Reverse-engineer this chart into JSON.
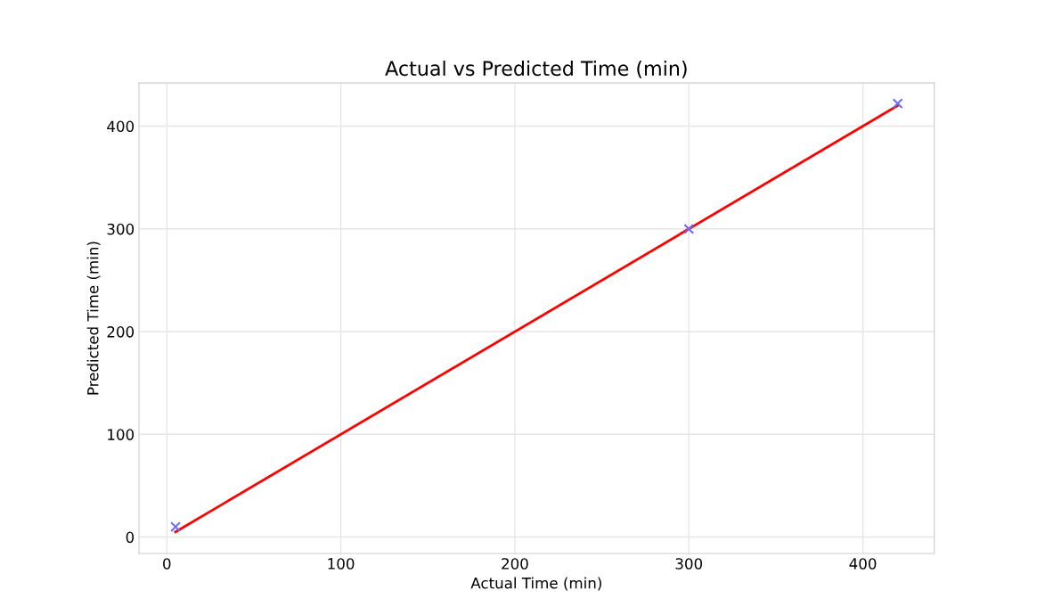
{
  "chart_data": {
    "type": "scatter",
    "title": "Actual vs Predicted Time (min)",
    "xlabel": "Actual Time (min)",
    "ylabel": "Predicted Time (min)",
    "series": [
      {
        "color": "#6b6bf5",
        "marker": "cross",
        "x": [
          5,
          300,
          420
        ],
        "values": [
          10,
          300,
          422
        ]
      },
      {
        "type": "line",
        "color": "#ff0000",
        "marker": "none",
        "x": [
          5,
          420
        ],
        "values": [
          5,
          420
        ]
      }
    ],
    "xlim": [
      -16,
      441
    ],
    "ylim": [
      -16,
      442
    ],
    "xticks": [
      0,
      100,
      200,
      300,
      400
    ],
    "yticks": [
      0,
      100,
      200,
      300,
      400
    ],
    "grid": true,
    "legend": false
  }
}
